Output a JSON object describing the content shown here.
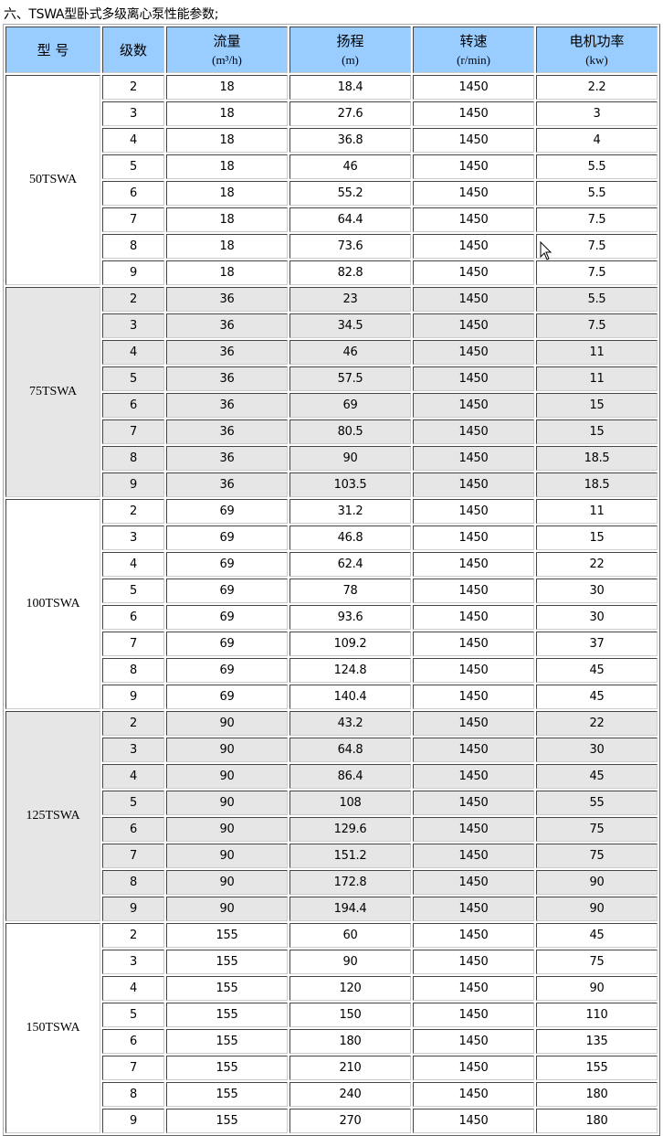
{
  "title": "六、TSWA型卧式多级离心泵性能参数;",
  "colors": {
    "header_bg": "#99ccff",
    "alt_group_bg": "#e6e6e6"
  },
  "headers": [
    {
      "label": "型 号",
      "unit": ""
    },
    {
      "label": "级数",
      "unit": ""
    },
    {
      "label": "流量",
      "unit": "(m³/h)"
    },
    {
      "label": "扬程",
      "unit": "(m)"
    },
    {
      "label": "转速",
      "unit": "(r/min)"
    },
    {
      "label": "电机功率",
      "unit": "(kw)"
    }
  ],
  "groups": [
    {
      "model": "50TSWA",
      "rows": [
        [
          "2",
          "18",
          "18.4",
          "1450",
          "2.2"
        ],
        [
          "3",
          "18",
          "27.6",
          "1450",
          "3"
        ],
        [
          "4",
          "18",
          "36.8",
          "1450",
          "4"
        ],
        [
          "5",
          "18",
          "46",
          "1450",
          "5.5"
        ],
        [
          "6",
          "18",
          "55.2",
          "1450",
          "5.5"
        ],
        [
          "7",
          "18",
          "64.4",
          "1450",
          "7.5"
        ],
        [
          "8",
          "18",
          "73.6",
          "1450",
          "7.5"
        ],
        [
          "9",
          "18",
          "82.8",
          "1450",
          "7.5"
        ]
      ]
    },
    {
      "model": "75TSWA",
      "rows": [
        [
          "2",
          "36",
          "23",
          "1450",
          "5.5"
        ],
        [
          "3",
          "36",
          "34.5",
          "1450",
          "7.5"
        ],
        [
          "4",
          "36",
          "46",
          "1450",
          "11"
        ],
        [
          "5",
          "36",
          "57.5",
          "1450",
          "11"
        ],
        [
          "6",
          "36",
          "69",
          "1450",
          "15"
        ],
        [
          "7",
          "36",
          "80.5",
          "1450",
          "15"
        ],
        [
          "8",
          "36",
          "90",
          "1450",
          "18.5"
        ],
        [
          "9",
          "36",
          "103.5",
          "1450",
          "18.5"
        ]
      ]
    },
    {
      "model": "100TSWA",
      "rows": [
        [
          "2",
          "69",
          "31.2",
          "1450",
          "11"
        ],
        [
          "3",
          "69",
          "46.8",
          "1450",
          "15"
        ],
        [
          "4",
          "69",
          "62.4",
          "1450",
          "22"
        ],
        [
          "5",
          "69",
          "78",
          "1450",
          "30"
        ],
        [
          "6",
          "69",
          "93.6",
          "1450",
          "30"
        ],
        [
          "7",
          "69",
          "109.2",
          "1450",
          "37"
        ],
        [
          "8",
          "69",
          "124.8",
          "1450",
          "45"
        ],
        [
          "9",
          "69",
          "140.4",
          "1450",
          "45"
        ]
      ]
    },
    {
      "model": "125TSWA",
      "rows": [
        [
          "2",
          "90",
          "43.2",
          "1450",
          "22"
        ],
        [
          "3",
          "90",
          "64.8",
          "1450",
          "30"
        ],
        [
          "4",
          "90",
          "86.4",
          "1450",
          "45"
        ],
        [
          "5",
          "90",
          "108",
          "1450",
          "55"
        ],
        [
          "6",
          "90",
          "129.6",
          "1450",
          "75"
        ],
        [
          "7",
          "90",
          "151.2",
          "1450",
          "75"
        ],
        [
          "8",
          "90",
          "172.8",
          "1450",
          "90"
        ],
        [
          "9",
          "90",
          "194.4",
          "1450",
          "90"
        ]
      ]
    },
    {
      "model": "150TSWA",
      "rows": [
        [
          "2",
          "155",
          "60",
          "1450",
          "45"
        ],
        [
          "3",
          "155",
          "90",
          "1450",
          "75"
        ],
        [
          "4",
          "155",
          "120",
          "1450",
          "90"
        ],
        [
          "5",
          "155",
          "150",
          "1450",
          "110"
        ],
        [
          "6",
          "155",
          "180",
          "1450",
          "135"
        ],
        [
          "7",
          "155",
          "210",
          "1450",
          "155"
        ],
        [
          "8",
          "155",
          "240",
          "1450",
          "180"
        ],
        [
          "9",
          "155",
          "270",
          "1450",
          "180"
        ]
      ]
    }
  ]
}
